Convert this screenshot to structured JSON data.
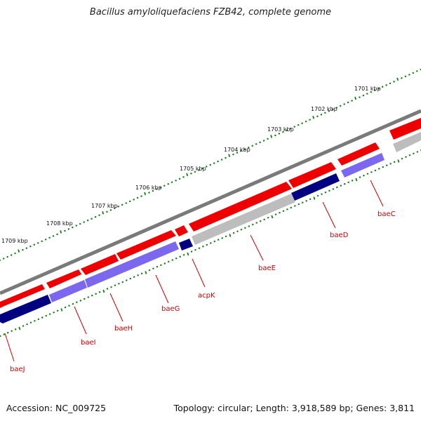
{
  "title": "Bacillus amyloliquefaciens FZB42, complete genome",
  "footer": {
    "accession": "Accession: NC_009725",
    "topology": "Topology: circular; Length: 3,918,589 bp; Genes: 3,811"
  },
  "colors": {
    "backbone": "#7a7a7a",
    "tick_major": "#1a7a1a",
    "tick_minor": "#1a7a1a",
    "forward_gene": "#ee0000",
    "reverse_gene_dark": "#000080",
    "reverse_gene_light": "#7b68ee",
    "reverse_gene_grey": "#bdbdbd",
    "label_line": "#cc0000",
    "label_text": "#cc0000",
    "scale_text": "#111111"
  },
  "scale_unit": "kbp",
  "scale_labels": [
    "1709 kbp",
    "1708 kbp",
    "1707 kbp",
    "1706 kbp",
    "1705 kbp",
    "1704 kbp",
    "1703 kbp",
    "1702 kbp",
    "1701 kbp"
  ],
  "genes": [
    "baeJ",
    "baeI",
    "baeH",
    "baeG",
    "acpK",
    "baeE",
    "baeD",
    "baeC"
  ]
}
